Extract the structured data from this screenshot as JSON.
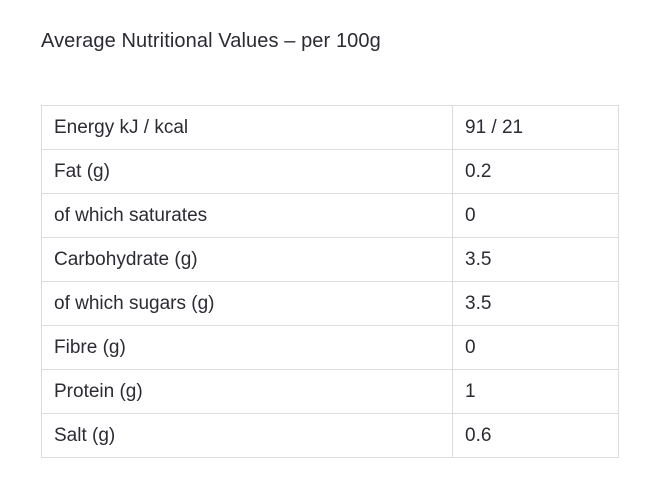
{
  "heading": "Average Nutritional Values – per 100g",
  "rows": [
    {
      "label": "Energy kJ / kcal",
      "value": "91 / 21"
    },
    {
      "label": "Fat (g)",
      "value": "0.2"
    },
    {
      "label": "of which saturates",
      "value": "0"
    },
    {
      "label": "Carbohydrate (g)",
      "value": "3.5"
    },
    {
      "label": "of which sugars (g)",
      "value": "3.5"
    },
    {
      "label": "Fibre (g)",
      "value": "0"
    },
    {
      "label": "Protein (g)",
      "value": "1"
    },
    {
      "label": "Salt (g)",
      "value": "0.6"
    }
  ]
}
